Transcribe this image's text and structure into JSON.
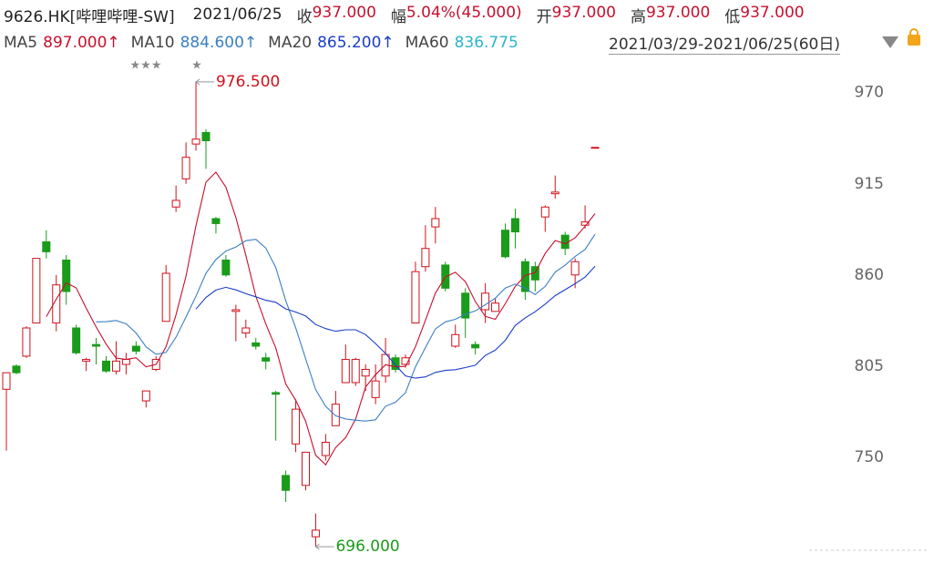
{
  "header": {
    "symbol": "9626.HK[哔哩哔哩-SW]",
    "date": "2021/06/25",
    "items": [
      {
        "label": "收",
        "value": "937.000"
      },
      {
        "label": "幅",
        "value": "5.04%(45.000)"
      },
      {
        "label": "开",
        "value": "937.000"
      },
      {
        "label": "高",
        "value": "937.000"
      },
      {
        "label": "低",
        "value": "937.000"
      }
    ],
    "range": "2021/03/29-2021/06/25(60日)",
    "markers": [
      "★★★",
      "★"
    ]
  },
  "chart_data": {
    "type": "candlestick",
    "open": [
      791,
      805,
      811,
      831,
      880,
      831,
      869,
      828,
      808,
      818,
      808,
      802,
      806,
      817,
      784,
      803,
      832,
      901,
      918,
      939,
      946,
      894,
      869,
      838,
      825,
      819,
      810,
      789,
      739,
      758,
      733,
      702,
      751,
      769,
      795,
      795,
      799,
      786,
      799,
      810,
      806,
      831,
      865,
      889,
      866,
      817,
      849,
      818,
      839,
      838,
      887,
      894,
      868,
      865,
      895,
      909,
      884,
      860,
      890,
      937
    ],
    "high": [
      801,
      806,
      829,
      870,
      887,
      860,
      872,
      830,
      810,
      822,
      811,
      820,
      813,
      820,
      790,
      811,
      866,
      914,
      940,
      976.5,
      948,
      895,
      872,
      842,
      833,
      822,
      813,
      790,
      742,
      785,
      753,
      716,
      764,
      790,
      818,
      810,
      806,
      806,
      822,
      812,
      812,
      868,
      890,
      901,
      868,
      830,
      852,
      820,
      855,
      846,
      891,
      900,
      870,
      868,
      902,
      920,
      886,
      870,
      902,
      937
    ],
    "low": [
      754,
      800,
      810,
      831,
      870,
      826,
      842,
      812,
      802,
      806,
      801,
      800,
      800,
      812,
      780,
      802,
      832,
      898,
      915,
      935,
      924,
      885,
      859,
      820,
      822,
      815,
      803,
      760,
      723,
      753,
      730,
      696,
      748,
      769,
      795,
      793,
      790,
      782,
      795,
      801,
      804,
      831,
      862,
      879,
      850,
      816,
      822,
      812,
      831,
      838,
      870,
      876,
      845,
      850,
      886,
      906,
      872,
      852,
      888,
      937
    ],
    "close": [
      801,
      801,
      828,
      870,
      874,
      854,
      850,
      813,
      809,
      817,
      802,
      808,
      809,
      814,
      790,
      809,
      861,
      905,
      931,
      942,
      941,
      891,
      860,
      839,
      828,
      817,
      808,
      788,
      730,
      779,
      753,
      706,
      759,
      782,
      809,
      809,
      803,
      796,
      812,
      803,
      810,
      862,
      876,
      894,
      852,
      824,
      834,
      816,
      849,
      843,
      871,
      886,
      850,
      857,
      901,
      910,
      876,
      868,
      892,
      937
    ],
    "up_color": "#d0121b",
    "down_color": "#1a9b1a",
    "extreme_labels": {
      "high": "976.500",
      "low": "696.000"
    },
    "ma_lines": [
      {
        "name": "MA5",
        "last_label": "897.000↑",
        "color": "#c8102e",
        "values": [
          null,
          null,
          null,
          null,
          834.8,
          845.4,
          855.2,
          852.2,
          840,
          828.6,
          818.2,
          809.8,
          809,
          810,
          804.6,
          806,
          816.6,
          835.8,
          859.2,
          889.6,
          916,
          922,
          913,
          894.6,
          871.8,
          847,
          830.4,
          816,
          794.2,
          784.4,
          771.6,
          751.2,
          745.4,
          755.8,
          761.8,
          773,
          792.4,
          799.8,
          805.8,
          804.6,
          804.8,
          816.6,
          832.6,
          849,
          858.8,
          861.6,
          856,
          844,
          835,
          833.2,
          842.6,
          853,
          859.8,
          861.4,
          873,
          880.8,
          878.8,
          882.4,
          889.4,
          897
        ]
      },
      {
        "name": "MA10",
        "last_label": "884.600↑",
        "color": "#3b7fc4",
        "values": [
          null,
          null,
          null,
          null,
          null,
          null,
          null,
          null,
          null,
          831.7,
          831.8,
          832.5,
          830.6,
          825,
          816.6,
          812.1,
          813.2,
          822.4,
          834.6,
          847.1,
          861,
          869.3,
          874.4,
          876.9,
          880.7,
          881.5,
          876.2,
          864.5,
          844.4,
          828.1,
          809.3,
          790.8,
          780.7,
          775,
          773.1,
          772.3,
          771.8,
          772.6,
          780.8,
          783.2,
          788.9,
          804.5,
          816.2,
          827.4,
          831.7,
          833.2,
          836.3,
          838.3,
          842,
          846,
          852.1,
          854.5,
          851.9,
          848.2,
          853.1,
          861.7,
          865.9,
          871.1,
          875.4,
          884.6
        ]
      },
      {
        "name": "MA20",
        "last_label": "865.200↑",
        "color": "#1a3fc8",
        "values": [
          null,
          null,
          null,
          null,
          null,
          null,
          null,
          null,
          null,
          null,
          null,
          null,
          null,
          null,
          null,
          null,
          null,
          null,
          null,
          839.4,
          846.4,
          850.9,
          852.5,
          851,
          848.7,
          846.8,
          844.7,
          843.5,
          839.5,
          837.6,
          835.2,
          830.1,
          827.6,
          826,
          826.9,
          826.9,
          824,
          818.6,
          812.6,
          805.7,
          799.1,
          797.7,
          798.5,
          801.2,
          802.4,
          802.8,
          804.1,
          805.5,
          811.4,
          814.6,
          820.5,
          829.5,
          834.1,
          837.8,
          842.4,
          847.5,
          851.1,
          854.7,
          858.7,
          865.2
        ]
      },
      {
        "name": "MA60",
        "last_label": "836.775",
        "color": "#2ab6cc"
      }
    ],
    "ylim": [
      690,
      988
    ],
    "yticks": [
      750,
      805,
      860,
      915,
      970
    ]
  }
}
